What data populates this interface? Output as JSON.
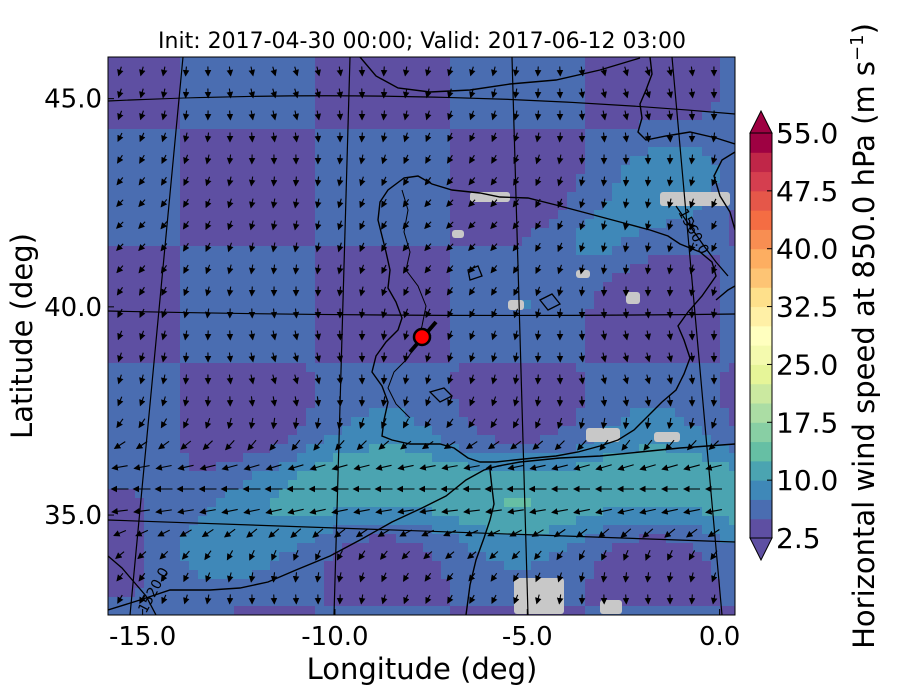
{
  "chart_data": {
    "type": "heatmap",
    "title": "Init: 2017-04-30 00:00; Valid: 2017-06-12 03:00",
    "xlabel": "Longitude (deg)",
    "ylabel": "Latitude (deg)",
    "xlim": [
      -15.9,
      0.4
    ],
    "ylim": [
      32.6,
      46.0
    ],
    "x_ticks": [
      -15.0,
      -10.0,
      -5.0,
      0.0
    ],
    "x_tick_labels": [
      "-15.0",
      "-10.0",
      "-5.0",
      "0.0"
    ],
    "y_ticks": [
      35.0,
      40.0,
      45.0
    ],
    "y_tick_labels": [
      "35.0",
      "40.0",
      "45.0"
    ],
    "parallels": [
      35.0,
      40.0,
      45.0
    ],
    "meridians": [
      -15.0,
      -10.0,
      -5.0,
      0.0
    ],
    "grid": true,
    "colorbar": {
      "label": "Horizontal wind speed at 850.0 hPa (m s$^{-1}$)",
      "label_text": "Horizontal wind speed at 850.0 hPa (m s",
      "label_exp": "−1",
      "label_close": ")",
      "min": 2.5,
      "max": 55.0,
      "step": 2.5,
      "extend": "both",
      "colormap": "Spectral_r",
      "tick_values": [
        2.5,
        10.0,
        17.5,
        25.0,
        32.5,
        40.0,
        47.5,
        55.0
      ],
      "tick_labels": [
        "2.5",
        "10.0",
        "17.5",
        "25.0",
        "32.5",
        "40.0",
        "47.5",
        "55.0"
      ],
      "colors": [
        "#5e4fa2",
        "#4a6db1",
        "#3f88b8",
        "#4ba4b1",
        "#66bfa4",
        "#88cfa4",
        "#abdda4",
        "#cbe9a0",
        "#e6f598",
        "#f4faae",
        "#ffffbf",
        "#fff0a6",
        "#fee08b",
        "#fdc474",
        "#fdae61",
        "#f88e52",
        "#f46d43",
        "#e55749",
        "#d53e4f",
        "#c02648",
        "#9e0142"
      ]
    },
    "contour_labels": [
      "1560.0",
      "1520.0"
    ],
    "marker": {
      "lon": -7.6,
      "lat": 39.4,
      "color": "#ff0000"
    },
    "wind_pattern": {
      "background_speed": 5,
      "jet_speed": 12,
      "jet_axis_lat": 35.6,
      "jet_lon_range": [
        -13.5,
        0.0
      ],
      "missing_color": "#c8c8c8"
    }
  }
}
